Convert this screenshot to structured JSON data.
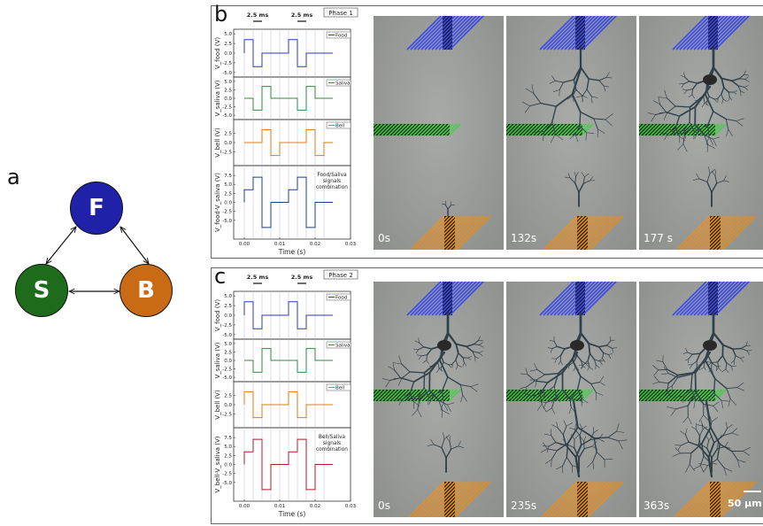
{
  "panel_a": {
    "letter": "a",
    "nodes": [
      {
        "label": "F",
        "color": "#1f22a8"
      },
      {
        "label": "S",
        "color": "#1e6b1c"
      },
      {
        "label": "B",
        "color": "#c96a14"
      }
    ]
  },
  "panel_b": {
    "letter": "b",
    "phase": "Phase 1",
    "pulse_labels": [
      "2.5 ms",
      "2.5 ms"
    ],
    "charts": [
      {
        "ylabel": "V_food (V)",
        "legend": "Food",
        "color": "#2c3bb0",
        "yticks": [
          "5.0",
          "2.5",
          "0.0",
          "-2.5",
          "-5.0"
        ]
      },
      {
        "ylabel": "V_saliva (V)",
        "legend": "Saliva",
        "color": "#2e8b3a",
        "yticks": [
          "5.0",
          "2.5",
          "0.0",
          "-2.5",
          "-5.0"
        ]
      },
      {
        "ylabel": "V_bell (V)",
        "legend": "Bell",
        "color": "#e07a10",
        "yticks": [
          "2.5",
          "0.0",
          "-2.5"
        ]
      },
      {
        "ylabel": "V_food-V_saliva (V)",
        "legend": "Food/Saliva signals combination",
        "color": "#1d3f8a",
        "yticks": [
          "7.5",
          "5.0",
          "2.5",
          "0.0",
          "-2.5",
          "-5.0"
        ]
      }
    ],
    "xticks": [
      "0.00",
      "0.01",
      "0.02",
      "0.03"
    ],
    "xlabel": "Time (s)",
    "times": [
      "0s",
      "132s",
      "177 s"
    ]
  },
  "panel_c": {
    "letter": "c",
    "phase": "Phase 2",
    "pulse_labels": [
      "2.5 ms",
      "2.5 ms"
    ],
    "charts": [
      {
        "ylabel": "V_food (V)",
        "legend": "Food",
        "color": "#2c3bb0",
        "yticks": [
          "5.0",
          "2.5",
          "0.0",
          "-2.5",
          "-5.0"
        ]
      },
      {
        "ylabel": "V_saliva (V)",
        "legend": "Saliva",
        "color": "#2e8b3a",
        "yticks": [
          "5.0",
          "2.5",
          "0.0",
          "-2.5",
          "-5.0"
        ]
      },
      {
        "ylabel": "V_bell (V)",
        "legend": "Bell",
        "color": "#e07a10",
        "yticks": [
          "2.5",
          "0.0",
          "-2.5"
        ]
      },
      {
        "ylabel": "V_bell-V_saliva (V)",
        "legend": "Bell/Saliva signals combination",
        "color": "#b01a2a",
        "yticks": [
          "7.5",
          "5.0",
          "2.5",
          "0.0",
          "-2.5",
          "-5.0"
        ]
      }
    ],
    "xticks": [
      "0.00",
      "0.01",
      "0.02",
      "0.03"
    ],
    "xlabel": "Time (s)",
    "times": [
      "0s",
      "235s",
      "363s"
    ],
    "scale_bar": "50 μm"
  },
  "chart_data": [
    {
      "type": "line",
      "title": "Phase 1",
      "xlabel": "Time (s)",
      "xlim": [
        -0.003,
        0.03
      ],
      "series": [
        {
          "name": "Food",
          "x": [
            0.0,
            0.0,
            0.0025,
            0.0025,
            0.005,
            0.005,
            0.0125,
            0.0125,
            0.015,
            0.015,
            0.0175,
            0.0175,
            0.025
          ],
          "y": [
            0,
            3.5,
            3.5,
            -3.5,
            -3.5,
            0,
            0,
            3.5,
            3.5,
            -3.5,
            -3.5,
            0,
            0
          ]
        },
        {
          "name": "Saliva",
          "x": [
            0.0,
            0.0025,
            0.0025,
            0.005,
            0.005,
            0.0075,
            0.0075,
            0.015,
            0.015,
            0.0175,
            0.0175,
            0.02,
            0.02,
            0.025
          ],
          "y": [
            0,
            0,
            -3.5,
            -3.5,
            3.5,
            3.5,
            0,
            0,
            -3.5,
            -3.5,
            3.5,
            3.5,
            0,
            0
          ]
        },
        {
          "name": "Bell",
          "x": [
            0.0,
            0.005,
            0.005,
            0.0075,
            0.0075,
            0.01,
            0.01,
            0.0175,
            0.0175,
            0.02,
            0.02,
            0.0225,
            0.0225,
            0.025
          ],
          "y": [
            0,
            0,
            3.5,
            3.5,
            -3.5,
            -3.5,
            0,
            0,
            3.5,
            3.5,
            -3.5,
            -3.5,
            0,
            0
          ]
        },
        {
          "name": "Food/Saliva signals combination",
          "x": [
            0.0,
            0.0,
            0.0025,
            0.0025,
            0.005,
            0.005,
            0.0075,
            0.0075,
            0.0125,
            0.0125,
            0.015,
            0.015,
            0.0175,
            0.0175,
            0.02,
            0.02,
            0.025
          ],
          "y": [
            0,
            3.5,
            3.5,
            7,
            7,
            -7,
            -7,
            0,
            0,
            3.5,
            3.5,
            7,
            7,
            -7,
            -7,
            0,
            0
          ]
        }
      ]
    },
    {
      "type": "line",
      "title": "Phase 2",
      "xlabel": "Time (s)",
      "xlim": [
        -0.003,
        0.03
      ],
      "series": [
        {
          "name": "Food",
          "x": [
            0.0,
            0.0,
            0.0025,
            0.0025,
            0.005,
            0.005,
            0.0125,
            0.0125,
            0.015,
            0.015,
            0.0175,
            0.0175,
            0.025
          ],
          "y": [
            0,
            3.5,
            3.5,
            -3.5,
            -3.5,
            0,
            0,
            3.5,
            3.5,
            -3.5,
            -3.5,
            0,
            0
          ]
        },
        {
          "name": "Saliva",
          "x": [
            0.0,
            0.0025,
            0.0025,
            0.005,
            0.005,
            0.0075,
            0.0075,
            0.015,
            0.015,
            0.0175,
            0.0175,
            0.02,
            0.02,
            0.025
          ],
          "y": [
            0,
            0,
            -3.5,
            -3.5,
            3.5,
            3.5,
            0,
            0,
            -3.5,
            -3.5,
            3.5,
            3.5,
            0,
            0
          ]
        },
        {
          "name": "Bell",
          "x": [
            0.0,
            0.0,
            0.0025,
            0.0025,
            0.005,
            0.005,
            0.0125,
            0.0125,
            0.015,
            0.015,
            0.0175,
            0.0175,
            0.025
          ],
          "y": [
            0,
            3.5,
            3.5,
            -3.5,
            -3.5,
            0,
            0,
            3.5,
            3.5,
            -3.5,
            -3.5,
            0,
            0
          ]
        },
        {
          "name": "Bell/Saliva signals combination",
          "x": [
            0.0,
            0.0,
            0.0025,
            0.0025,
            0.005,
            0.005,
            0.0075,
            0.0075,
            0.0125,
            0.0125,
            0.015,
            0.015,
            0.0175,
            0.0175,
            0.02,
            0.02,
            0.025
          ],
          "y": [
            0,
            3.5,
            3.5,
            7,
            7,
            -7,
            -7,
            0,
            0,
            3.5,
            3.5,
            7,
            7,
            -7,
            -7,
            0,
            0
          ]
        }
      ]
    }
  ]
}
